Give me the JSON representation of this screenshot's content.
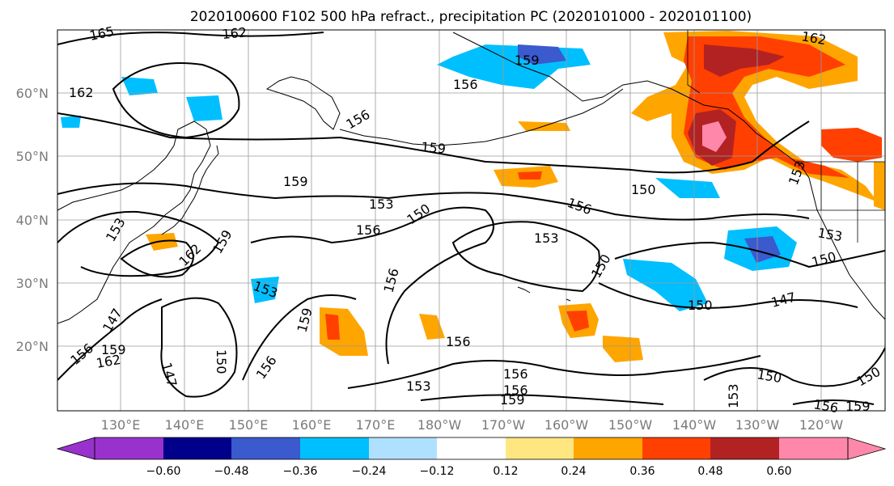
{
  "title": "2020100600 F102 500 hPa refract., precipitation PC (2020101000 - 2020101100)",
  "lat_labels": [
    "60°N",
    "50°N",
    "40°N",
    "30°N",
    "20°N"
  ],
  "lon_labels": [
    "130°E",
    "140°E",
    "150°E",
    "160°E",
    "170°E",
    "180°W",
    "170°W",
    "160°W",
    "150°W",
    "140°W",
    "130°W",
    "120°W"
  ],
  "colorbar": {
    "ticks": [
      "−0.60",
      "−0.48",
      "−0.36",
      "−0.24",
      "−0.12",
      "0.12",
      "0.24",
      "0.36",
      "0.48",
      "0.60"
    ],
    "colors": [
      "#9932cc",
      "#00008b",
      "#3a5acd",
      "#00bfff",
      "#b0e0ff",
      "#ffffff",
      "#ffe680",
      "#ffa500",
      "#ff4000",
      "#b22222",
      "#ff88aa",
      "#ffffff"
    ]
  },
  "contour_labels": [
    "165",
    "162",
    "159",
    "156",
    "153",
    "150",
    "147",
    "162",
    "159",
    "153",
    "156",
    "153",
    "150",
    "156",
    "159",
    "153",
    "162",
    "159",
    "150",
    "147",
    "156",
    "153",
    "156",
    "150",
    "156",
    "150",
    "147",
    "162",
    "159",
    "156",
    "156",
    "150",
    "153",
    "150",
    "156",
    "159",
    "153",
    "159",
    "156",
    "153",
    "162",
    "159",
    "156",
    "150"
  ]
}
